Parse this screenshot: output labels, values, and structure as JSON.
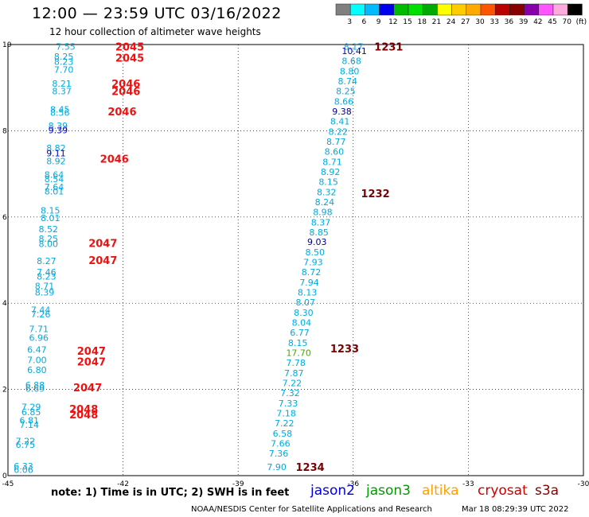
{
  "header": {
    "title": "12:00 — 23:59 UTC 03/16/2022",
    "subtitle": "12 hour collection of altimeter wave heights"
  },
  "legend": {
    "labels": [
      "3",
      "6",
      "9",
      "12",
      "15",
      "18",
      "21",
      "24",
      "27",
      "30",
      "33",
      "36",
      "39",
      "42",
      "45",
      "70",
      "(ft)"
    ],
    "colors": [
      "#808080",
      "#00ffff",
      "#00bbff",
      "#0000ee",
      "#00bb00",
      "#00e000",
      "#00aa00",
      "#ffff00",
      "#ffcc00",
      "#ffaa00",
      "#ff5500",
      "#bb0000",
      "#880000",
      "#8800aa",
      "#ff55ff",
      "#ffaadd",
      "#000000"
    ]
  },
  "axes": {
    "x_ticks": [
      "-45",
      "-42",
      "-39",
      "-36",
      "-33",
      "-30"
    ],
    "y_ticks": [
      "0",
      "2",
      "4",
      "6",
      "8",
      "10"
    ]
  },
  "passes": [
    {
      "label": "2045",
      "lon": -42.2,
      "lat": 9.95,
      "color": "#ee1111"
    },
    {
      "label": "2045",
      "lon": -42.2,
      "lat": 9.7,
      "color": "#ee1111"
    },
    {
      "label": "2046",
      "lon": -42.3,
      "lat": 9.1,
      "color": "#ee1111"
    },
    {
      "label": "2046",
      "lon": -42.3,
      "lat": 8.92,
      "color": "#ee1111"
    },
    {
      "label": "2046",
      "lon": -42.4,
      "lat": 8.45,
      "color": "#ee1111"
    },
    {
      "label": "2046",
      "lon": -42.6,
      "lat": 7.35,
      "color": "#ee1111"
    },
    {
      "label": "2047",
      "lon": -42.9,
      "lat": 5.4,
      "color": "#ee1111"
    },
    {
      "label": "2047",
      "lon": -42.9,
      "lat": 5.0,
      "color": "#ee1111"
    },
    {
      "label": "2047",
      "lon": -43.2,
      "lat": 2.9,
      "color": "#ee1111"
    },
    {
      "label": "2047",
      "lon": -43.2,
      "lat": 2.65,
      "color": "#ee1111"
    },
    {
      "label": "2047",
      "lon": -43.3,
      "lat": 2.05,
      "color": "#ee1111"
    },
    {
      "label": "2048",
      "lon": -43.4,
      "lat": 1.55,
      "color": "#ee1111"
    },
    {
      "label": "2048",
      "lon": -43.4,
      "lat": 1.42,
      "color": "#ee1111"
    },
    {
      "label": "1231",
      "lon": -35.45,
      "lat": 9.95,
      "color": "#7a0000"
    },
    {
      "label": "1232",
      "lon": -35.8,
      "lat": 6.55,
      "color": "#7a0000"
    },
    {
      "label": "1233",
      "lon": -36.6,
      "lat": 2.95,
      "color": "#7a0000"
    },
    {
      "label": "1234",
      "lon": -37.5,
      "lat": 0.2,
      "color": "#7a0000"
    }
  ],
  "track_left": [
    {
      "v": "7.55",
      "lon": -43.75,
      "lat": 9.95,
      "c": "#00aadd"
    },
    {
      "v": "8.25",
      "lon": -43.8,
      "lat": 9.72,
      "c": "#00aadd"
    },
    {
      "v": "8.23",
      "lon": -43.8,
      "lat": 9.6,
      "c": "#00aadd"
    },
    {
      "v": "7.70",
      "lon": -43.8,
      "lat": 9.42,
      "c": "#00aadd"
    },
    {
      "v": "8.21",
      "lon": -43.85,
      "lat": 9.1,
      "c": "#00aadd"
    },
    {
      "v": "8.37",
      "lon": -43.85,
      "lat": 8.92,
      "c": "#00aadd"
    },
    {
      "v": "8.45",
      "lon": -43.9,
      "lat": 8.5,
      "c": "#00aadd"
    },
    {
      "v": "8.56",
      "lon": -43.9,
      "lat": 8.42,
      "c": "#00aadd"
    },
    {
      "v": "8.39",
      "lon": -43.95,
      "lat": 8.12,
      "c": "#00aadd"
    },
    {
      "v": "9.39",
      "lon": -43.95,
      "lat": 8.02,
      "c": "#0000cc"
    },
    {
      "v": "8.82",
      "lon": -44.0,
      "lat": 7.6,
      "c": "#00aadd"
    },
    {
      "v": "9.11",
      "lon": -44.0,
      "lat": 7.48,
      "c": "#0000cc"
    },
    {
      "v": "8.92",
      "lon": -44.0,
      "lat": 7.3,
      "c": "#00aadd"
    },
    {
      "v": "8.64",
      "lon": -44.05,
      "lat": 6.98,
      "c": "#00aadd"
    },
    {
      "v": "8.54",
      "lon": -44.05,
      "lat": 6.88,
      "c": "#00aadd"
    },
    {
      "v": "7.64",
      "lon": -44.05,
      "lat": 6.7,
      "c": "#00aadd"
    },
    {
      "v": "8.01",
      "lon": -44.05,
      "lat": 6.6,
      "c": "#00aadd"
    },
    {
      "v": "8.15",
      "lon": -44.15,
      "lat": 6.15,
      "c": "#00aadd"
    },
    {
      "v": "8.01",
      "lon": -44.15,
      "lat": 5.98,
      "c": "#00aadd"
    },
    {
      "v": "8.52",
      "lon": -44.2,
      "lat": 5.72,
      "c": "#00aadd"
    },
    {
      "v": "8.25",
      "lon": -44.2,
      "lat": 5.5,
      "c": "#00aadd"
    },
    {
      "v": "8.00",
      "lon": -44.2,
      "lat": 5.38,
      "c": "#00aadd"
    },
    {
      "v": "8.27",
      "lon": -44.25,
      "lat": 4.98,
      "c": "#00aadd"
    },
    {
      "v": "7.46",
      "lon": -44.25,
      "lat": 4.72,
      "c": "#00aadd"
    },
    {
      "v": "8.23",
      "lon": -44.25,
      "lat": 4.62,
      "c": "#00aadd"
    },
    {
      "v": "8.71",
      "lon": -44.3,
      "lat": 4.4,
      "c": "#00aadd"
    },
    {
      "v": "8.39",
      "lon": -44.3,
      "lat": 4.25,
      "c": "#00aadd"
    },
    {
      "v": "7.44",
      "lon": -44.4,
      "lat": 3.85,
      "c": "#00aadd"
    },
    {
      "v": "7.26",
      "lon": -44.4,
      "lat": 3.75,
      "c": "#00aadd"
    },
    {
      "v": "7.71",
      "lon": -44.45,
      "lat": 3.4,
      "c": "#00aadd"
    },
    {
      "v": "6.96",
      "lon": -44.45,
      "lat": 3.2,
      "c": "#00aadd"
    },
    {
      "v": "6.47",
      "lon": -44.5,
      "lat": 2.92,
      "c": "#00aadd"
    },
    {
      "v": "7.00",
      "lon": -44.5,
      "lat": 2.68,
      "c": "#00aadd"
    },
    {
      "v": "6.80",
      "lon": -44.5,
      "lat": 2.45,
      "c": "#00aadd"
    },
    {
      "v": "6.88",
      "lon": -44.55,
      "lat": 2.1,
      "c": "#00aadd"
    },
    {
      "v": "6.69",
      "lon": -44.55,
      "lat": 2.02,
      "c": "#00aadd"
    },
    {
      "v": "7.29",
      "lon": -44.65,
      "lat": 1.6,
      "c": "#00aadd"
    },
    {
      "v": "6.85",
      "lon": -44.65,
      "lat": 1.48,
      "c": "#00aadd"
    },
    {
      "v": "6.81",
      "lon": -44.7,
      "lat": 1.28,
      "c": "#00aadd"
    },
    {
      "v": "7.14",
      "lon": -44.7,
      "lat": 1.18,
      "c": "#00aadd"
    },
    {
      "v": "7.22",
      "lon": -44.8,
      "lat": 0.8,
      "c": "#00aadd"
    },
    {
      "v": "6.75",
      "lon": -44.8,
      "lat": 0.72,
      "c": "#00aadd"
    },
    {
      "v": "6.33",
      "lon": -44.85,
      "lat": 0.22,
      "c": "#00aadd"
    },
    {
      "v": "6.06",
      "lon": -44.85,
      "lat": 0.14,
      "c": "#00aadd"
    }
  ],
  "track_right": [
    {
      "v": "8.17",
      "lon": -36.25,
      "lat": 9.95,
      "c": "#00aadd"
    },
    {
      "v": "10.41",
      "lon": -36.3,
      "lat": 9.85,
      "c": "#0000cc"
    },
    {
      "v": "8.68",
      "lon": -36.3,
      "lat": 9.62,
      "c": "#00aadd"
    },
    {
      "v": "8.80",
      "lon": -36.35,
      "lat": 9.38,
      "c": "#00aadd"
    },
    {
      "v": "8.74",
      "lon": -36.4,
      "lat": 9.15,
      "c": "#00aadd"
    },
    {
      "v": "8.25",
      "lon": -36.45,
      "lat": 8.92,
      "c": "#00aadd"
    },
    {
      "v": "8.66",
      "lon": -36.5,
      "lat": 8.68,
      "c": "#00aadd"
    },
    {
      "v": "9.38",
      "lon": -36.55,
      "lat": 8.45,
      "c": "#000088"
    },
    {
      "v": "8.41",
      "lon": -36.6,
      "lat": 8.22,
      "c": "#00aadd"
    },
    {
      "v": "8.22",
      "lon": -36.65,
      "lat": 7.98,
      "c": "#00aadd"
    },
    {
      "v": "8.77",
      "lon": -36.7,
      "lat": 7.75,
      "c": "#00aadd"
    },
    {
      "v": "8.60",
      "lon": -36.75,
      "lat": 7.52,
      "c": "#00aadd"
    },
    {
      "v": "8.71",
      "lon": -36.8,
      "lat": 7.28,
      "c": "#00aadd"
    },
    {
      "v": "8.92",
      "lon": -36.85,
      "lat": 7.05,
      "c": "#00aadd"
    },
    {
      "v": "8.15",
      "lon": -36.9,
      "lat": 6.82,
      "c": "#00aadd"
    },
    {
      "v": "8.32",
      "lon": -36.95,
      "lat": 6.58,
      "c": "#00aadd"
    },
    {
      "v": "8.24",
      "lon": -37.0,
      "lat": 6.35,
      "c": "#00aadd"
    },
    {
      "v": "8.98",
      "lon": -37.05,
      "lat": 6.12,
      "c": "#00aadd"
    },
    {
      "v": "8.37",
      "lon": -37.1,
      "lat": 5.88,
      "c": "#00aadd"
    },
    {
      "v": "8.85",
      "lon": -37.15,
      "lat": 5.65,
      "c": "#00aadd"
    },
    {
      "v": "9.03",
      "lon": -37.2,
      "lat": 5.42,
      "c": "#000088"
    },
    {
      "v": "8.50",
      "lon": -37.25,
      "lat": 5.18,
      "c": "#00aadd"
    },
    {
      "v": "7.93",
      "lon": -37.3,
      "lat": 4.95,
      "c": "#00aadd"
    },
    {
      "v": "8.72",
      "lon": -37.35,
      "lat": 4.72,
      "c": "#00aadd"
    },
    {
      "v": "7.94",
      "lon": -37.4,
      "lat": 4.48,
      "c": "#00aadd"
    },
    {
      "v": "8.13",
      "lon": -37.45,
      "lat": 4.25,
      "c": "#00aadd"
    },
    {
      "v": "8.07",
      "lon": -37.5,
      "lat": 4.02,
      "c": "#00aadd"
    },
    {
      "v": "8.30",
      "lon": -37.55,
      "lat": 3.78,
      "c": "#00aadd"
    },
    {
      "v": "8.04",
      "lon": -37.6,
      "lat": 3.55,
      "c": "#00aadd"
    },
    {
      "v": "6.77",
      "lon": -37.65,
      "lat": 3.32,
      "c": "#00aadd"
    },
    {
      "v": "8.15",
      "lon": -37.7,
      "lat": 3.08,
      "c": "#00aadd"
    },
    {
      "v": "17.70",
      "lon": -37.75,
      "lat": 2.85,
      "c": "#44aa00"
    },
    {
      "v": "7.78",
      "lon": -37.75,
      "lat": 2.62,
      "c": "#00aadd"
    },
    {
      "v": "7.87",
      "lon": -37.8,
      "lat": 2.38,
      "c": "#00aadd"
    },
    {
      "v": "7.22",
      "lon": -37.85,
      "lat": 2.15,
      "c": "#00aadd"
    },
    {
      "v": "7.32",
      "lon": -37.9,
      "lat": 1.92,
      "c": "#00aadd"
    },
    {
      "v": "7.33",
      "lon": -37.95,
      "lat": 1.68,
      "c": "#00aadd"
    },
    {
      "v": "7.18",
      "lon": -38.0,
      "lat": 1.45,
      "c": "#00aadd"
    },
    {
      "v": "7.22",
      "lon": -38.05,
      "lat": 1.22,
      "c": "#00aadd"
    },
    {
      "v": "6.58",
      "lon": -38.1,
      "lat": 0.98,
      "c": "#00aadd"
    },
    {
      "v": "7.66",
      "lon": -38.15,
      "lat": 0.75,
      "c": "#00aadd"
    },
    {
      "v": "7.36",
      "lon": -38.2,
      "lat": 0.52,
      "c": "#00aadd"
    },
    {
      "v": "7.90",
      "lon": -38.25,
      "lat": 0.2,
      "c": "#00aadd"
    }
  ],
  "bottom": {
    "note": "note:  1) Time is in UTC;  2) SWH is in feet",
    "satellites": [
      {
        "name": "jason2",
        "color": "#0000dd"
      },
      {
        "name": "jason3",
        "color": "#009900"
      },
      {
        "name": "altika",
        "color": "#ffa000"
      },
      {
        "name": "cryosat",
        "color": "#cc0000"
      },
      {
        "name": "s3a",
        "color": "#880000"
      }
    ],
    "credit": "NOAA/NESDIS Center for Satellite Applications and Research",
    "timestamp": "Mar 18 08:29:39 UTC 2022"
  }
}
